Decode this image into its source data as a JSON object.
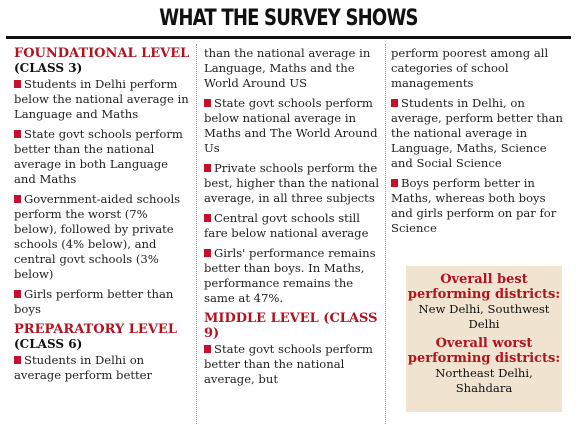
{
  "header": {
    "title": "WHAT THE SURVEY SHOWS"
  },
  "col1": {
    "foundational": {
      "title": "FOUNDATIONAL LEVEL",
      "subtitle": "(CLASS 3)"
    },
    "items": [
      "Students in Delhi perform below the national average in Language and Maths",
      "State govt schools perform better than the national average in both Language and Maths",
      "Government-aided schools perform the worst (7% below), followed by private schools (4% below), and central govt schools (3% below)",
      "Girls perform better than boys"
    ],
    "preparatory": {
      "title": "PREPARATORY LEVEL",
      "subtitle": "(CLASS 6)"
    },
    "items2": [
      "Students in Delhi on average perform better"
    ]
  },
  "col2": {
    "continuation": "than the national average in Language, Maths and the World Around US",
    "items": [
      "State govt schools perform below national average in Maths and The World Around Us",
      "Private schools perform the best, higher than the national average, in all three subjects",
      "Central govt schools still fare below national average",
      "Girls' performance remains better than boys. In Maths, performance remains the same at 47%."
    ],
    "middle": {
      "title": "MIDDLE LEVEL (CLASS 9)"
    },
    "items2": [
      "State govt schools perform better than the national average, but"
    ]
  },
  "col3": {
    "continuation": "perform poorest among all categories of school managements",
    "items": [
      "Students in Delhi, on average, perform better than the national average in Language, Maths, Science and Social Science",
      "Boys perform better in Maths, whereas both boys and girls perform on par for Science"
    ]
  },
  "box": {
    "best_title": "Overall best performing districts:",
    "best_value": "New Delhi, Southwest Delhi",
    "worst_title": "Overall worst performing districts:",
    "worst_value": "Northeast Delhi, Shahdara"
  },
  "colors": {
    "accent": "#b3121f",
    "bullet": "#c8102e",
    "box_bg": "#f0e3cf"
  }
}
